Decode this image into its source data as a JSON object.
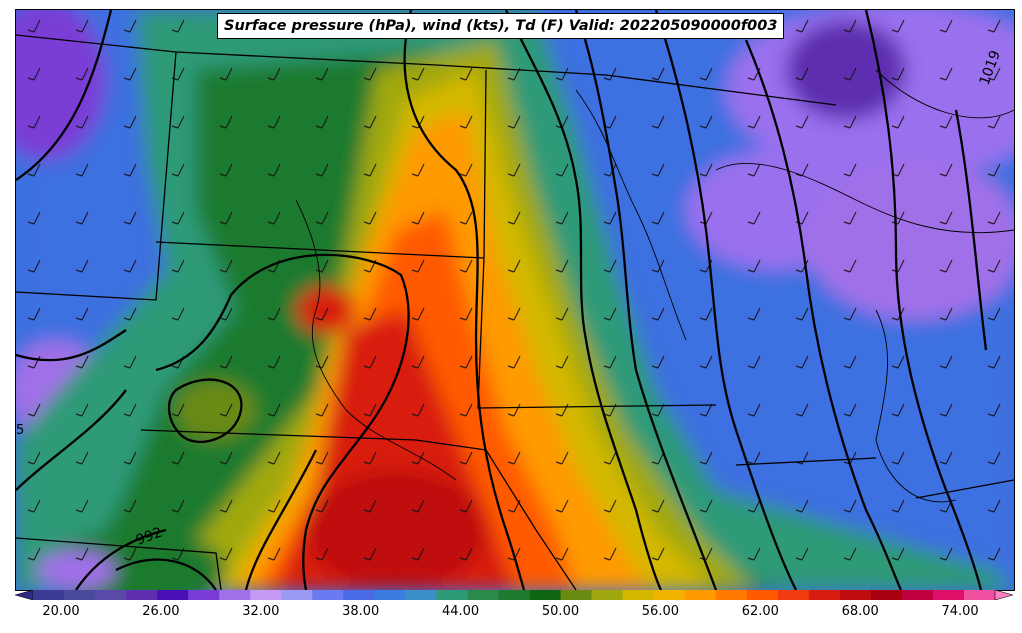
{
  "title": "Surface pressure (hPa), wind (kts), Td (F) Valid: 202205090000f003",
  "isobar_labels": [
    "992",
    "1019",
    "5"
  ],
  "colorbar": {
    "tick_labels": [
      "20.00",
      "26.00",
      "32.00",
      "38.00",
      "44.00",
      "50.00",
      "56.00",
      "62.00",
      "68.00",
      "74.00"
    ],
    "colors": [
      "#2e2b86",
      "#3d3a93",
      "#4a4a9c",
      "#5a4aa8",
      "#5d2fb0",
      "#4a10b5",
      "#7a3cd6",
      "#a070e8",
      "#c49af5",
      "#9a9af2",
      "#6a7af0",
      "#4a6ae6",
      "#3c7ce0",
      "#3a8fc8",
      "#2f9a78",
      "#2a8a4a",
      "#1e7a2e",
      "#0e6612",
      "#6a8a12",
      "#a0a810",
      "#d4b800",
      "#f2b200",
      "#ff9a00",
      "#ff7a00",
      "#ff5a00",
      "#f03a10",
      "#d81c10",
      "#c00e10",
      "#a8000e",
      "#c00040",
      "#e0106a",
      "#f050a0",
      "#ff80c0"
    ]
  }
}
